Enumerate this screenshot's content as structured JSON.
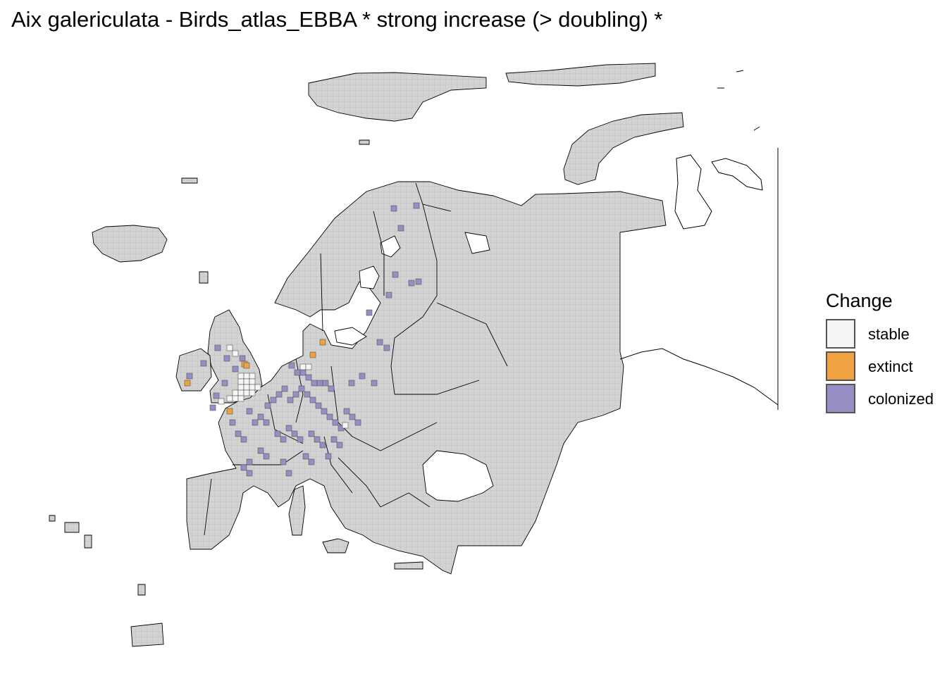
{
  "title": "Aix galericulata - Birds_atlas_EBBA * strong increase (> doubling) *",
  "legend": {
    "title": "Change",
    "items": [
      {
        "label": "stable",
        "color": "#f5f5f5"
      },
      {
        "label": "extinct",
        "color": "#f0a141"
      },
      {
        "label": "colonized",
        "color": "#998ec3"
      }
    ]
  },
  "colors": {
    "grid_fill": "#d3d3d3",
    "grid_line": "#aaaaaa",
    "border": "#000000",
    "stable": "#f5f5f5",
    "extinct": "#f0a141",
    "colonized": "#998ec3"
  }
}
